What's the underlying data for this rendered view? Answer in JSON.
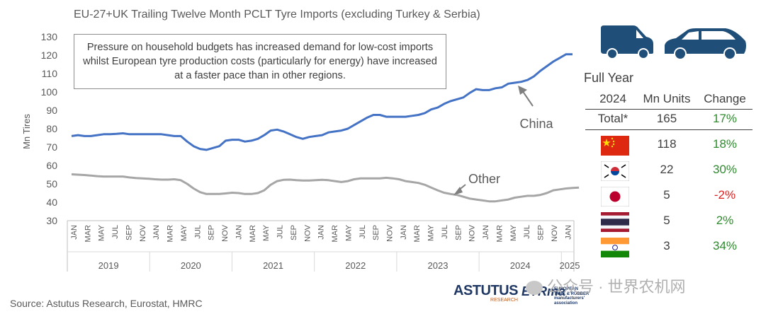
{
  "chart_data": {
    "type": "line",
    "title": "EU-27+UK Trailing Twelve Month PCLT Tyre Imports (excluding Turkey & Serbia)",
    "ylabel": "Mn Tires",
    "ylim": [
      30,
      130
    ],
    "yticks": [
      30,
      40,
      50,
      60,
      70,
      80,
      90,
      100,
      110,
      120,
      130
    ],
    "grid": false,
    "month_labels": [
      "JAN",
      "MAR",
      "MAY",
      "JUL",
      "SEP",
      "NOV",
      "JAN",
      "MAR",
      "MAY",
      "JUL",
      "SEP",
      "NOV",
      "JAN",
      "MAR",
      "MAY",
      "JUL",
      "SEP",
      "NOV",
      "JAN",
      "MAR",
      "MAY",
      "JUL",
      "SEP",
      "NOV",
      "JAN",
      "MAR",
      "MAY",
      "JUL",
      "SEP",
      "NOV",
      "JAN",
      "MAR",
      "MAY",
      "JUL",
      "SEP",
      "NOV",
      "JAN"
    ],
    "year_labels": [
      "2019",
      "2020",
      "2021",
      "2022",
      "2023",
      "2024",
      "2025"
    ],
    "series": [
      {
        "name": "China",
        "color": "#4472c4",
        "values": [
          76,
          76.5,
          76,
          76,
          76.5,
          77,
          77,
          77.2,
          77.5,
          77,
          77,
          77,
          77,
          77,
          77,
          76.5,
          76,
          76,
          73,
          70.5,
          69,
          68.5,
          69.5,
          70.5,
          73.5,
          74,
          74,
          73,
          73.5,
          74.5,
          76.5,
          79,
          79.5,
          78.5,
          77,
          75.5,
          74.5,
          75.5,
          76,
          76.5,
          78,
          78.5,
          79,
          80,
          82,
          84,
          86,
          87.5,
          87.5,
          86.5,
          86.5,
          86.5,
          86.5,
          87,
          87.5,
          88.5,
          90.5,
          91.5,
          93.5,
          95,
          96,
          97,
          99.5,
          101.5,
          101,
          101,
          102,
          102.5,
          104.5,
          105,
          105.5,
          106.5,
          108.5,
          111.5,
          114,
          116.5,
          118.5,
          120.5,
          120.5
        ]
      },
      {
        "name": "Other",
        "color": "#a6a6a6",
        "values": [
          55.2,
          55,
          54.8,
          54.5,
          54.2,
          54,
          54,
          54,
          54,
          53.5,
          53.2,
          53,
          52.8,
          52.5,
          52.3,
          52.3,
          52.5,
          52,
          50,
          47.5,
          45.5,
          44.5,
          44.5,
          44.5,
          44.8,
          45.2,
          45,
          44.5,
          44.5,
          45,
          46.5,
          49.5,
          51.5,
          52.2,
          52.3,
          52,
          51.8,
          51.8,
          52,
          52.2,
          52,
          51.5,
          51,
          51.5,
          52.5,
          53,
          53,
          53,
          53,
          53.3,
          53,
          52.5,
          51.5,
          51,
          50.5,
          49.5,
          48,
          46.5,
          45.2,
          44.5,
          44,
          43,
          42,
          41.5,
          41,
          40.5,
          40.5,
          41,
          41.5,
          42.5,
          43,
          43.5,
          43.5,
          44,
          45,
          46.5,
          47,
          47.5,
          47.8,
          48
        ]
      }
    ],
    "annotations": [
      {
        "text": "China",
        "series": "China"
      },
      {
        "text": "Other",
        "series": "Other"
      },
      {
        "text": "Pressure on household budgets has increased demand for low-cost imports whilst European tyre production costs (particularly for energy) have increased at a faster pace than in other regions."
      }
    ]
  },
  "table": {
    "heading": "Full Year",
    "columns": [
      "2024",
      "Mn Units",
      "Change"
    ],
    "total": {
      "label": "Total*",
      "units": "165",
      "change": "17%"
    },
    "rows": [
      {
        "country": "China",
        "flag": "china-flag",
        "units": "118",
        "change": "18%",
        "color": "#2e8b2e"
      },
      {
        "country": "South Korea",
        "flag": "south-korea-flag",
        "units": "22",
        "change": "30%",
        "color": "#2e8b2e"
      },
      {
        "country": "Japan",
        "flag": "japan-flag",
        "units": "5",
        "change": "-2%",
        "color": "#e02020"
      },
      {
        "country": "Thailand",
        "flag": "thailand-flag",
        "units": "5",
        "change": "2%",
        "color": "#2e8b2e"
      },
      {
        "country": "India",
        "flag": "india-flag",
        "units": "3",
        "change": "34%",
        "color": "#2e8b2e"
      }
    ]
  },
  "source": "Source: Astutus Research, Eurostat, HMRC",
  "logos": {
    "astutus": "ASTUTUS",
    "astutus_sub": "RESEARCH",
    "etrma": "ETRma",
    "etrma_sub1": "EUROPEAN",
    "etrma_sub2": "TYRE & RUBBER",
    "etrma_sub3": "manufacturers'",
    "etrma_sub4": "association",
    "watermark": "公众号 · 世界农机网"
  },
  "icons": [
    "van-icon",
    "car-icon"
  ],
  "colors": {
    "china": "#4472c4",
    "other": "#a6a6a6",
    "positive": "#2e8b2e",
    "negative": "#e02020",
    "icon": "#1f4e79"
  }
}
